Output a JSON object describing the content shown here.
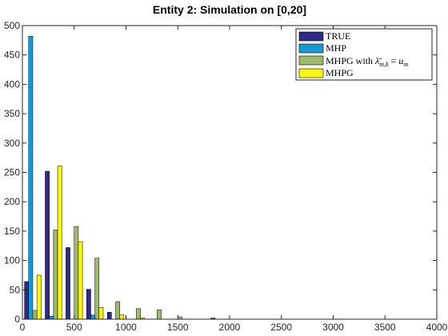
{
  "chart_data": {
    "type": "bar",
    "title": "Entity 2: Simulation on [0,20]",
    "xlabel": "",
    "ylabel": "",
    "xlim": [
      0,
      4000
    ],
    "ylim": [
      0,
      500
    ],
    "xticks": [
      0,
      500,
      1000,
      1500,
      2000,
      2500,
      3000,
      3500,
      4000
    ],
    "yticks": [
      0,
      50,
      100,
      150,
      200,
      250,
      300,
      350,
      400,
      450,
      500
    ],
    "grid": false,
    "legend_position": "top-right",
    "bin_centers": [
      100,
      300,
      500,
      700,
      900,
      1100,
      1300,
      1500,
      1700,
      1900
    ],
    "series": [
      {
        "name": "TRUE",
        "color": "#2e2a85",
        "values": [
          64,
          252,
          122,
          51,
          12,
          0,
          0,
          0,
          0,
          2
        ]
      },
      {
        "name": "MHP",
        "color": "#169ad4",
        "values": [
          482,
          5,
          0,
          7,
          0,
          0,
          0,
          0,
          0,
          0
        ]
      },
      {
        "name": "MHPG with λ̄_{m,k} = u_m",
        "color": "#9dba6c",
        "values": [
          15,
          152,
          158,
          104,
          30,
          18,
          16,
          4,
          0,
          0
        ]
      },
      {
        "name": "MHPG",
        "color": "#f8f517",
        "values": [
          75,
          261,
          132,
          20,
          8,
          2,
          0,
          0,
          0,
          0
        ]
      }
    ]
  }
}
